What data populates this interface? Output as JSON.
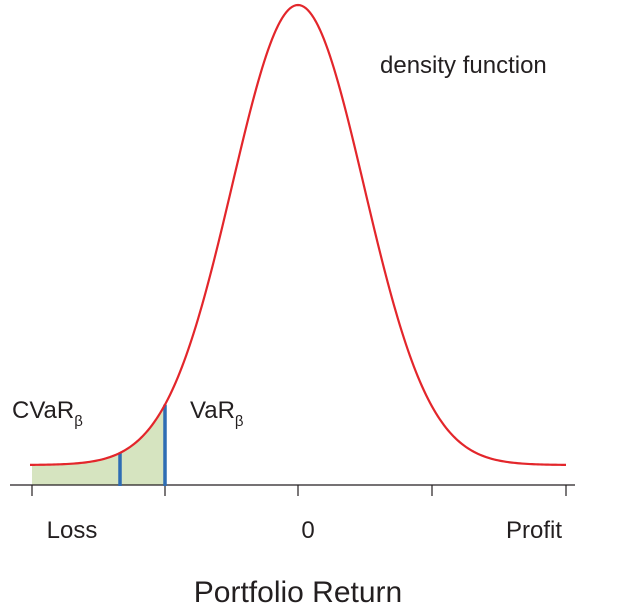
{
  "curve_label": "density function",
  "markers": [
    {
      "text": "CVaR",
      "subscript": "β"
    },
    {
      "text": "VaR",
      "subscript": "β"
    }
  ],
  "axis": {
    "left_label": "Loss",
    "center_label": "0",
    "right_label": "Profit",
    "title": "Portfolio Return"
  }
}
